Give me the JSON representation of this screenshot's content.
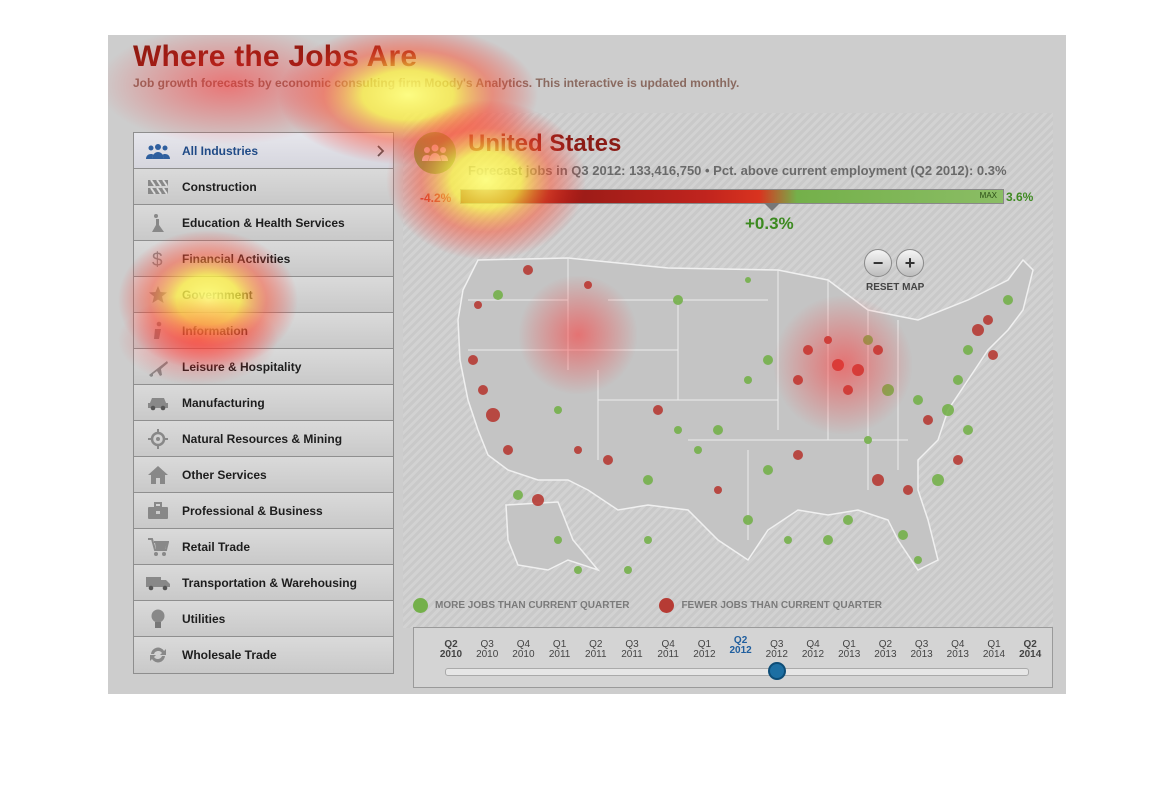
{
  "header": {
    "title": "Where the Jobs Are",
    "subtitle": "Job growth forecasts by economic consulting firm Moody's Analytics. This interactive is updated monthly."
  },
  "sidebar": {
    "items": [
      {
        "label": "All Industries",
        "icon": "people-icon",
        "active": true
      },
      {
        "label": "Construction",
        "icon": "barrier-icon"
      },
      {
        "label": "Education & Health Services",
        "icon": "flask-icon"
      },
      {
        "label": "Financial Activities",
        "icon": "dollar-icon"
      },
      {
        "label": "Government",
        "icon": "badge-star-icon"
      },
      {
        "label": "Information",
        "icon": "info-icon"
      },
      {
        "label": "Leisure & Hospitality",
        "icon": "airplane-icon"
      },
      {
        "label": "Manufacturing",
        "icon": "car-icon"
      },
      {
        "label": "Natural Resources & Mining",
        "icon": "crosshair-icon"
      },
      {
        "label": "Other Services",
        "icon": "house-icon"
      },
      {
        "label": "Professional & Business",
        "icon": "briefcase-icon"
      },
      {
        "label": "Retail Trade",
        "icon": "cart-icon"
      },
      {
        "label": "Transportation & Warehousing",
        "icon": "truck-icon"
      },
      {
        "label": "Utilities",
        "icon": "lightbulb-icon"
      },
      {
        "label": "Wholesale Trade",
        "icon": "recycle-icon"
      }
    ]
  },
  "region": {
    "name": "United States",
    "stats": "Forecast jobs in Q3 2012: 133,416,750 • Pct. above current employment (Q2 2012): 0.3%"
  },
  "scale": {
    "min_label": "-4.2%",
    "max_tag": "MAX",
    "max_label": "3.6%",
    "current_label": "+0.3%",
    "min": -4.2,
    "max": 3.6,
    "current": 0.3
  },
  "map_controls": {
    "zoom_out": "−",
    "zoom_in": "+",
    "reset": "RESET MAP"
  },
  "legend": {
    "more": "MORE JOBS THAN CURRENT QUARTER",
    "fewer": "FEWER JOBS THAN CURRENT QUARTER",
    "more_color": "#74b04a",
    "fewer_color": "#b63b34"
  },
  "timeline": {
    "ticks": [
      {
        "q": "Q2",
        "y": "2010"
      },
      {
        "q": "Q3",
        "y": "2010"
      },
      {
        "q": "Q4",
        "y": "2010"
      },
      {
        "q": "Q1",
        "y": "2011"
      },
      {
        "q": "Q2",
        "y": "2011"
      },
      {
        "q": "Q3",
        "y": "2011"
      },
      {
        "q": "Q4",
        "y": "2011"
      },
      {
        "q": "Q1",
        "y": "2012"
      },
      {
        "q": "Q2",
        "y": "2012"
      },
      {
        "q": "Q3",
        "y": "2012"
      },
      {
        "q": "Q4",
        "y": "2012"
      },
      {
        "q": "Q1",
        "y": "2013"
      },
      {
        "q": "Q2",
        "y": "2013"
      },
      {
        "q": "Q3",
        "y": "2013"
      },
      {
        "q": "Q4",
        "y": "2013"
      },
      {
        "q": "Q1",
        "y": "2014"
      },
      {
        "q": "Q2",
        "y": "2014"
      }
    ],
    "current_index": 8,
    "knob_index": 9
  },
  "colors": {
    "accent_blue": "#1f4a86",
    "title_red": "#8c1a10",
    "positive_green": "#3c8a20"
  }
}
